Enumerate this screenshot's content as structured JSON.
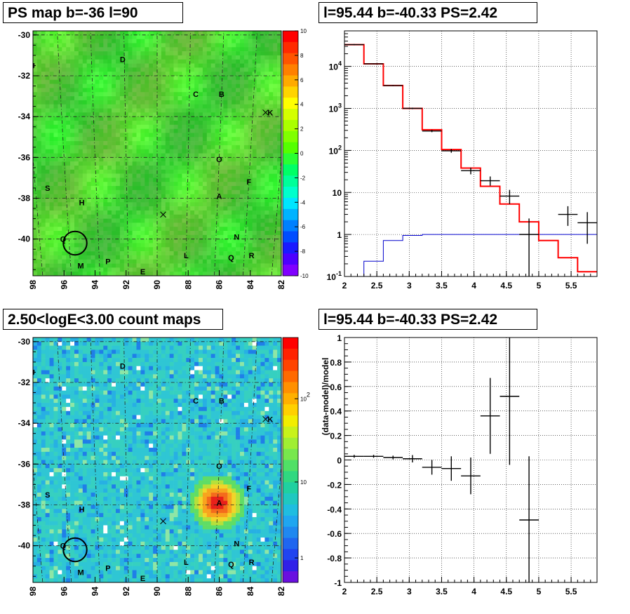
{
  "chart_data": [
    {
      "type": "heatmap",
      "title": "PS map b=-36 l=90",
      "x_ticks": [
        "98",
        "96",
        "94",
        "92",
        "90",
        "88",
        "86",
        "84",
        "82"
      ],
      "y_ticks": [
        "-30",
        "-32",
        "-34",
        "-36",
        "-38",
        "-40"
      ],
      "xlim": [
        98,
        82
      ],
      "ylim": [
        -41.8,
        -29.8
      ],
      "z_range": [
        -10,
        10
      ],
      "z_ticks": [
        "10",
        "8",
        "6",
        "4",
        "2",
        "0",
        "-2",
        "-4",
        "-6",
        "-8",
        "-10"
      ],
      "grid": true,
      "source_labels": [
        {
          "text": "J",
          "l": 97.6,
          "b": -31.5
        },
        {
          "text": "D",
          "l": 92.1,
          "b": -31.2
        },
        {
          "text": "C",
          "l": 87.6,
          "b": -32.9
        },
        {
          "text": "B",
          "l": 86.0,
          "b": -32.9
        },
        {
          "text": "K",
          "l": 82.9,
          "b": -33.8
        },
        {
          "text": "O",
          "l": 86.0,
          "b": -36.1
        },
        {
          "text": "F",
          "l": 84.0,
          "b": -37.2
        },
        {
          "text": "S",
          "l": 97.2,
          "b": -37.5
        },
        {
          "text": "H",
          "l": 95.0,
          "b": -38.2
        },
        {
          "text": "A",
          "l": 85.9,
          "b": -37.9
        },
        {
          "text": "Q",
          "l": 96.4,
          "b": -40.0
        },
        {
          "text": "N",
          "l": 84.6,
          "b": -39.9
        },
        {
          "text": "L",
          "l": 88.0,
          "b": -40.8
        },
        {
          "text": "R",
          "l": 83.5,
          "b": -40.8
        },
        {
          "text": "Q",
          "l": 84.9,
          "b": -40.9
        },
        {
          "text": "P",
          "l": 93.4,
          "b": -41.1
        },
        {
          "text": "M",
          "l": 95.3,
          "b": -41.3
        },
        {
          "text": "E",
          "l": 91.0,
          "b": -41.6
        }
      ],
      "x_marks": [
        {
          "l": 83.2,
          "b": -33.8
        },
        {
          "l": 89.6,
          "b": -38.8
        }
      ],
      "circle": {
        "l": 95.6,
        "b": -40.2,
        "r_deg": 0.5
      }
    },
    {
      "type": "line",
      "title": "l=95.44 b=-40.33 PS=2.42",
      "xlim": [
        2,
        5.9
      ],
      "ylim": [
        0.1,
        70000
      ],
      "yscale": "log",
      "x_ticks": [
        "2",
        "2.5",
        "3",
        "3.5",
        "4",
        "4.5",
        "5",
        "5.5"
      ],
      "y_ticks": [
        "10^-1",
        "1",
        "10",
        "10^2",
        "10^3",
        "10^4"
      ],
      "grid": true,
      "model_total": {
        "color": "#ff0000",
        "edges": [
          2,
          2.3,
          2.6,
          2.9,
          3.2,
          3.5,
          3.8,
          4.1,
          4.4,
          4.7,
          5.0,
          5.3,
          5.6,
          5.9
        ],
        "values": [
          33000,
          11500,
          3500,
          1000,
          310,
          105,
          38,
          14,
          5.3,
          2.0,
          0.72,
          0.28,
          0.13
        ]
      },
      "model_source": {
        "color": "#0000cc",
        "edges": [
          2,
          2.3,
          2.6,
          2.9,
          3.2,
          3.5,
          3.8,
          4.1,
          4.4,
          4.7,
          5.0,
          5.3,
          5.6,
          5.9
        ],
        "values": [
          0.09,
          0.23,
          0.72,
          0.95,
          1.0,
          1.0,
          1.0,
          1.0,
          1.0,
          1.0,
          1.0,
          1.0,
          1.0
        ]
      },
      "data_points": [
        {
          "x": 2.15,
          "y": 33000,
          "ylo": 32000,
          "yhi": 34000
        },
        {
          "x": 2.45,
          "y": 11500,
          "ylo": 11200,
          "yhi": 11800
        },
        {
          "x": 2.75,
          "y": 3500,
          "ylo": 3400,
          "yhi": 3600
        },
        {
          "x": 3.05,
          "y": 1000,
          "ylo": 960,
          "yhi": 1040
        },
        {
          "x": 3.35,
          "y": 290,
          "ylo": 272,
          "yhi": 308
        },
        {
          "x": 3.65,
          "y": 98,
          "ylo": 88,
          "yhi": 108
        },
        {
          "x": 3.95,
          "y": 33,
          "ylo": 27,
          "yhi": 39
        },
        {
          "x": 4.25,
          "y": 19,
          "ylo": 14.5,
          "yhi": 24
        },
        {
          "x": 4.55,
          "y": 8.2,
          "ylo": 5.3,
          "yhi": 11.5
        },
        {
          "x": 4.85,
          "y": 1.0,
          "ylo": 0.1,
          "yhi": 2.4
        },
        {
          "x": 5.45,
          "y": 3.0,
          "ylo": 1.6,
          "yhi": 4.7
        },
        {
          "x": 5.75,
          "y": 1.9,
          "ylo": 0.6,
          "yhi": 3.4
        }
      ]
    },
    {
      "type": "heatmap",
      "title": "2.50<logE<3.00 count maps",
      "x_ticks": [
        "98",
        "96",
        "94",
        "92",
        "90",
        "88",
        "86",
        "84",
        "82"
      ],
      "y_ticks": [
        "-30",
        "-32",
        "-34",
        "-36",
        "-38",
        "-40"
      ],
      "xlim": [
        98,
        82
      ],
      "ylim": [
        -41.8,
        -29.8
      ],
      "z_scale": "log",
      "z_ticks": [
        "10^2",
        "10",
        "1"
      ],
      "grid": true,
      "hotspot": {
        "l": 86.0,
        "b": -37.9
      },
      "circle": {
        "l": 95.6,
        "b": -40.2,
        "r_deg": 0.5
      }
    },
    {
      "type": "scatter",
      "title": "l=95.44 b=-40.33 PS=2.42",
      "ylabel": "(data-model)/model",
      "xlim": [
        2,
        5.9
      ],
      "ylim": [
        -1,
        1
      ],
      "x_ticks": [
        "2",
        "2.5",
        "3",
        "3.5",
        "4",
        "4.5",
        "5",
        "5.5"
      ],
      "y_ticks": [
        "1",
        "0.8",
        "0.6",
        "0.4",
        "0.2",
        "0",
        "-0.2",
        "-0.4",
        "-0.6",
        "-0.8",
        "-1"
      ],
      "grid": true,
      "points": [
        {
          "x": 2.15,
          "y": 0.03,
          "yerr": 0.012
        },
        {
          "x": 2.45,
          "y": 0.03,
          "yerr": 0.012
        },
        {
          "x": 2.75,
          "y": 0.02,
          "yerr": 0.015
        },
        {
          "x": 3.05,
          "y": 0.01,
          "yerr": 0.03
        },
        {
          "x": 3.35,
          "y": -0.06,
          "yerr": 0.06
        },
        {
          "x": 3.65,
          "y": -0.07,
          "yerr": 0.1
        },
        {
          "x": 3.95,
          "y": -0.13,
          "yerr": 0.15
        },
        {
          "x": 4.25,
          "y": 0.36,
          "yerr": 0.31
        },
        {
          "x": 4.55,
          "y": 0.52,
          "yerr": 0.56
        },
        {
          "x": 4.85,
          "y": -0.49,
          "yerr": 0.52
        }
      ]
    }
  ],
  "colors": {
    "model_total": "#ff0000",
    "model_source": "#0000cc",
    "data": "#000000"
  }
}
